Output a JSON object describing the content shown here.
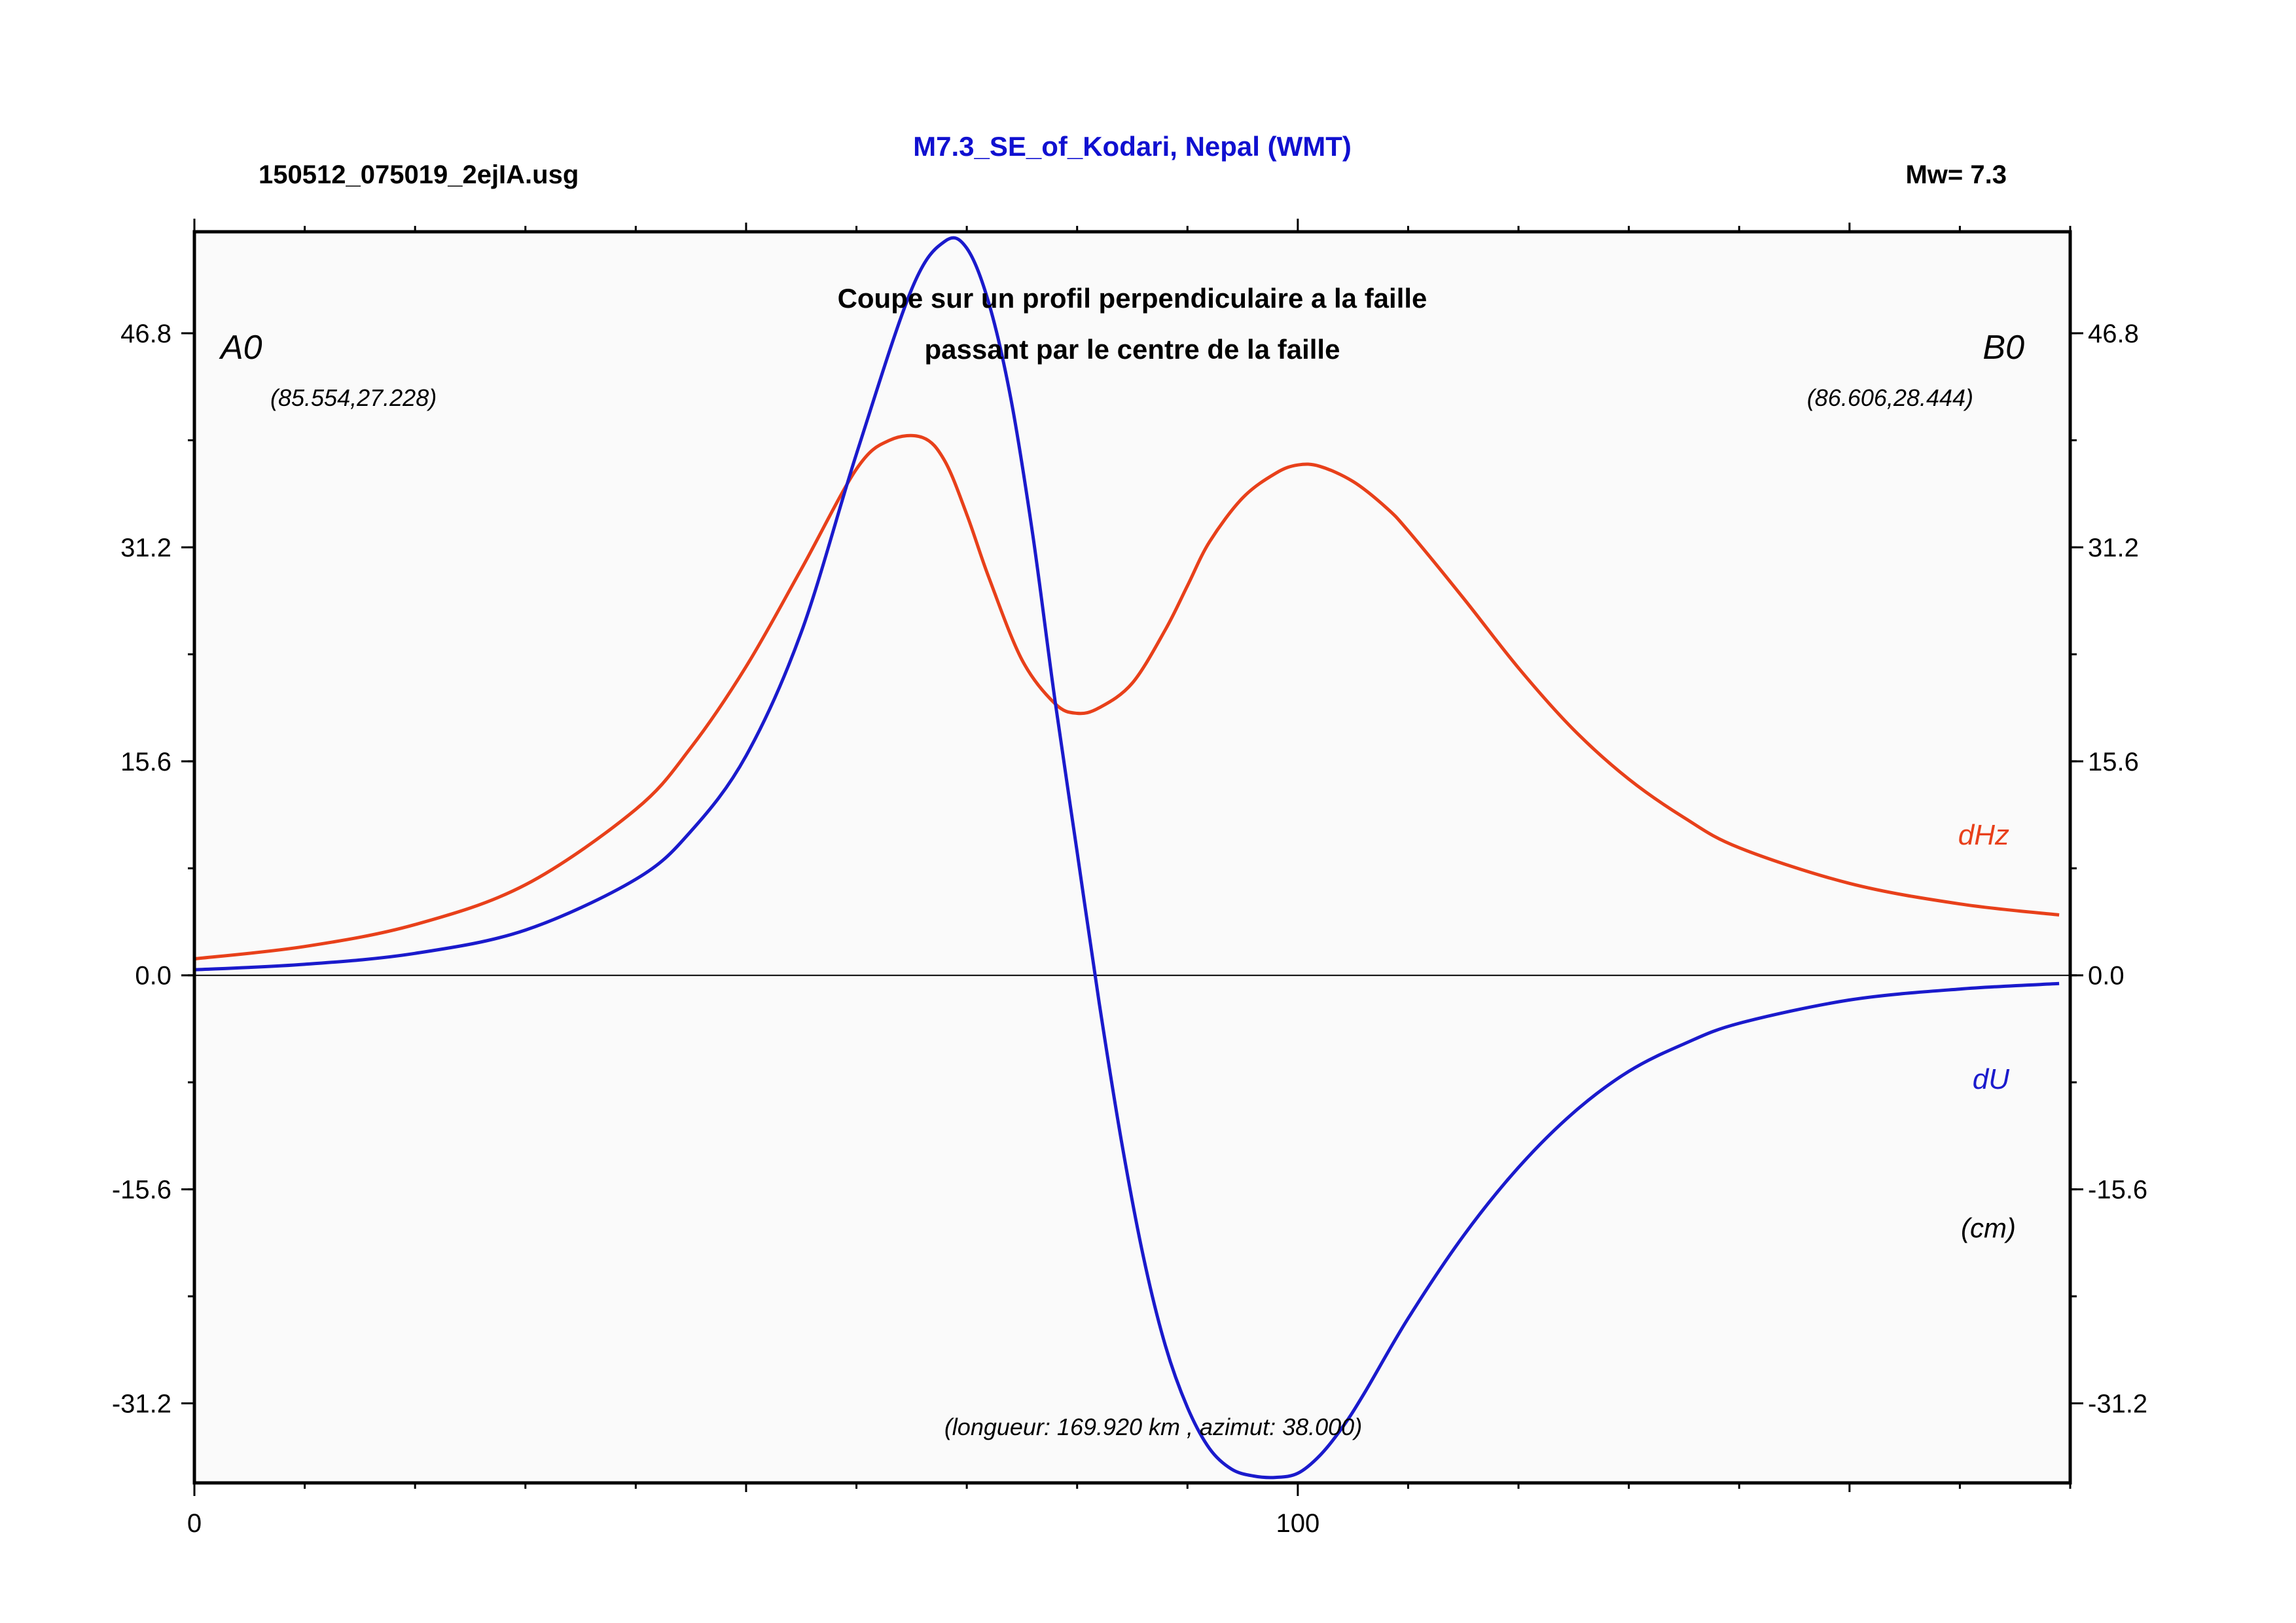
{
  "header": {
    "filename": "150512_075019_2ejIA.usg",
    "title": "M7.3_SE_of_Kodari, Nepal (WMT)",
    "magnitude": "Mw= 7.3"
  },
  "annotations": {
    "subtitle_line1": "Coupe sur un profil perpendiculaire a la faille",
    "subtitle_line2": "passant par le centre de la faille",
    "point_a_label": "A0",
    "point_a_coords": "(85.554,27.228)",
    "point_b_label": "B0",
    "point_b_coords": "(86.606,28.444)",
    "unit_label": "(cm)",
    "profile_info": "(longueur: 169.920 km , azimut: 38.000)"
  },
  "colors": {
    "title": "#1010d0",
    "dHz": "#e8401a",
    "dU": "#1a1acc",
    "plot_background": "#fafafa"
  },
  "chart_data": {
    "type": "line",
    "xlim": [
      0,
      170
    ],
    "ylim": [
      -37,
      54.2
    ],
    "yticks": [
      -31.2,
      -15.6,
      0.0,
      15.6,
      31.2,
      46.8
    ],
    "ytick_labels": [
      "-31.2",
      "-15.6",
      "0.0",
      "15.6",
      "31.2",
      "46.8"
    ],
    "xticks": [
      0,
      100
    ],
    "xtick_labels": [
      "0",
      "100"
    ],
    "grid": false,
    "series": [
      {
        "name": "dHz",
        "x": [
          0,
          10,
          20,
          30,
          40,
          45,
          50,
          55,
          60,
          63,
          66,
          68,
          70,
          72,
          75,
          78,
          80,
          82,
          85,
          88,
          90,
          92,
          95,
          98,
          100,
          102,
          105,
          108,
          110,
          115,
          120,
          125,
          130,
          135,
          140,
          150,
          160,
          169
        ],
        "values": [
          1.2,
          2.1,
          3.7,
          6.6,
          12.1,
          16.6,
          22.5,
          29.6,
          36.9,
          39.0,
          39.2,
          37.5,
          33.6,
          29.0,
          23.0,
          19.8,
          19.1,
          19.5,
          21.3,
          25.2,
          28.4,
          31.6,
          34.8,
          36.6,
          37.2,
          37.1,
          36.0,
          34.1,
          32.4,
          27.5,
          22.4,
          17.9,
          14.3,
          11.5,
          9.3,
          6.7,
          5.2,
          4.4
        ]
      },
      {
        "name": "dU",
        "x": [
          0,
          10,
          20,
          30,
          40,
          45,
          50,
          55,
          60,
          65,
          68,
          70,
          72,
          74,
          76,
          78,
          80,
          82,
          84,
          86,
          88,
          90,
          92,
          94,
          96,
          98,
          100,
          102,
          104,
          106,
          110,
          115,
          120,
          125,
          130,
          135,
          140,
          150,
          160,
          169
        ],
        "values": [
          0.4,
          0.8,
          1.6,
          3.3,
          7.0,
          10.5,
          16.0,
          25.0,
          38.0,
          50.0,
          53.5,
          53.0,
          49.0,
          42.0,
          32.0,
          20.0,
          9.0,
          -2.0,
          -12.0,
          -20.5,
          -27.0,
          -31.5,
          -34.5,
          -36.0,
          -36.5,
          -36.6,
          -36.3,
          -35.0,
          -33.0,
          -30.5,
          -25.0,
          -19.0,
          -14.0,
          -10.0,
          -7.0,
          -5.0,
          -3.5,
          -1.8,
          -1.0,
          -0.6
        ]
      }
    ]
  }
}
